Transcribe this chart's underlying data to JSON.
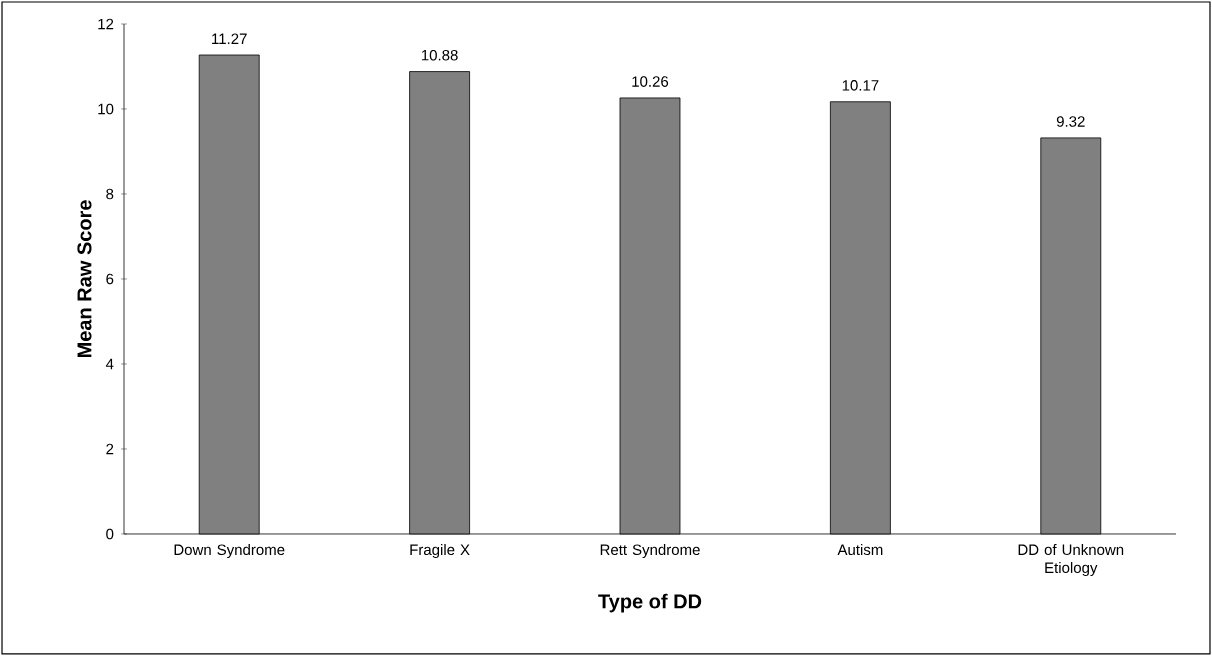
{
  "chart_data": {
    "type": "bar",
    "xlabel": "Type of DD",
    "ylabel": "Mean Raw Score",
    "categories": [
      "Down Syndrome",
      "Fragile X",
      "Rett Syndrome",
      "Autism",
      "DD of Unknown Etiology"
    ],
    "values": [
      11.27,
      10.88,
      10.26,
      10.17,
      9.32
    ],
    "color": "#808080",
    "ylim": [
      0,
      12
    ],
    "yticks": [
      0,
      2,
      4,
      6,
      8,
      10,
      12
    ],
    "data_labels": true,
    "grid": false
  }
}
